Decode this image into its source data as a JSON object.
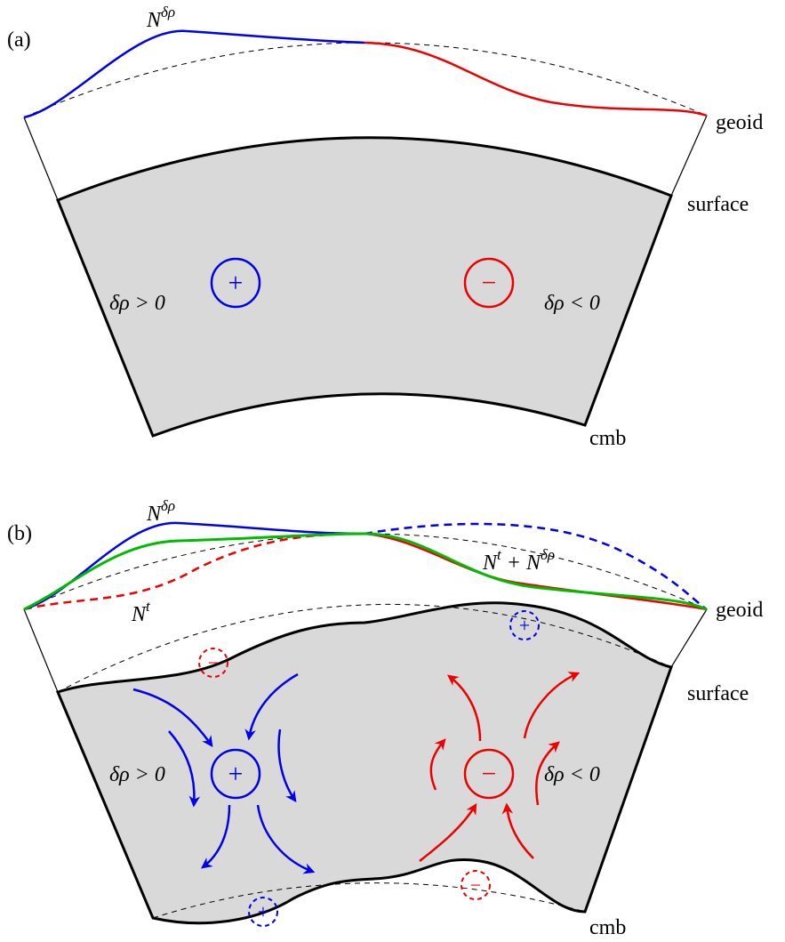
{
  "panel_a": {
    "label": "(a)",
    "curve_label": {
      "base": "N",
      "sup": "δρ"
    },
    "geoid": "geoid",
    "surface": "surface",
    "cmb": "cmb",
    "left_density": "δρ > 0",
    "right_density": "δρ < 0",
    "anomalies": [
      "+",
      "−"
    ]
  },
  "panel_b": {
    "label": "(b)",
    "curve_label": {
      "base": "N",
      "sup": "δρ"
    },
    "topo_label": {
      "base": "N",
      "sup": "t"
    },
    "sum_label": [
      {
        "base": "N",
        "sup": "t"
      },
      {
        "base": " + N",
        "sup": "δρ"
      }
    ],
    "geoid": "geoid",
    "surface": "surface",
    "cmb": "cmb",
    "left_density": "δρ > 0",
    "right_density": "δρ < 0",
    "anomalies": [
      "+",
      "−"
    ],
    "boundary_anomalies": [
      "−",
      "+",
      "+",
      "−"
    ]
  }
}
